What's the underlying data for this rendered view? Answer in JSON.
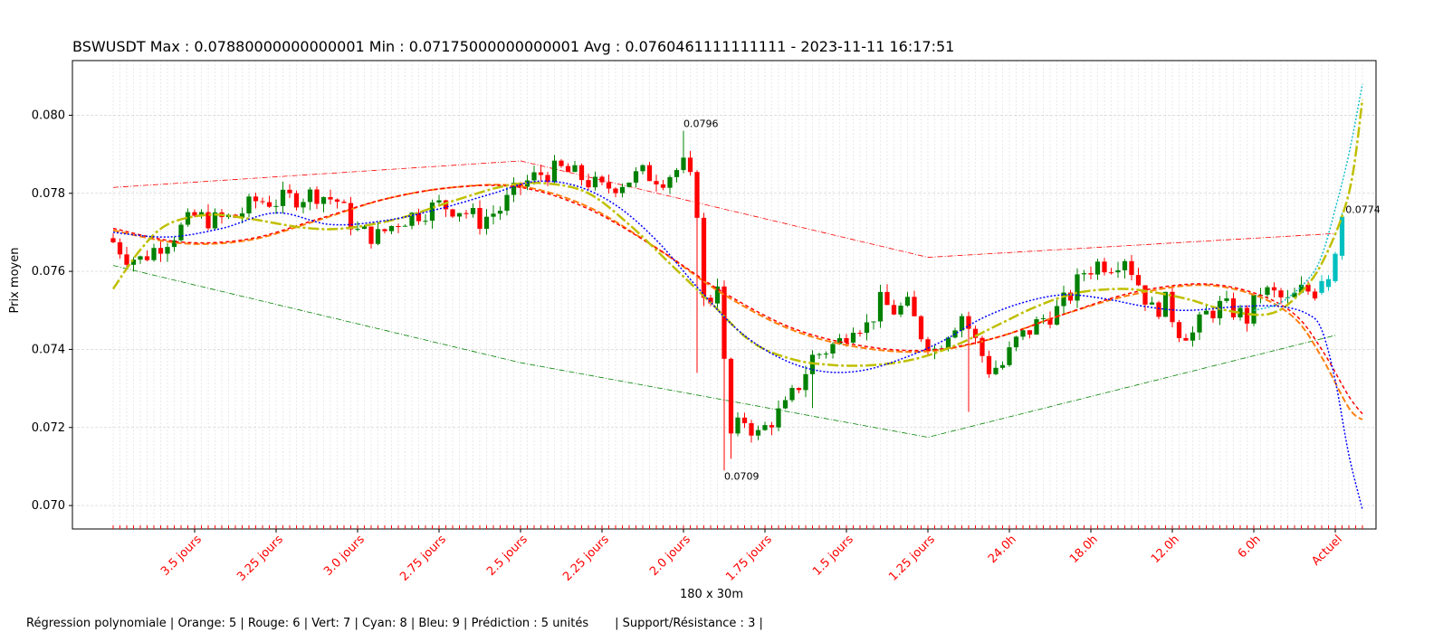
{
  "chart_data": {
    "type": "candlestick",
    "title": "BSWUSDT Max : 0.07880000000000001 Min : 0.07175000000000001 Avg : 0.0760461111111111 - 2023-11-11 16:17:51",
    "xlabel": "180 x 30m",
    "ylabel": "Prix moyen",
    "footer": "Régression polynomiale | Orange: 5 | Rouge: 6 | Vert: 7 | Cyan: 8 | Bleu: 9 | Prédiction : 5 unités       | Support/Résistance : 3 |",
    "ylim": [
      0.0694,
      0.0814
    ],
    "xlim": [
      -6,
      186
    ],
    "yticks": [
      "0.070",
      "0.072",
      "0.074",
      "0.076",
      "0.078",
      "0.080"
    ],
    "xtick_labels": [
      "3.5 jours",
      "3.25 jours",
      "3.0 jours",
      "2.75 jours",
      "2.5 jours",
      "2.25 jours",
      "2.0 jours",
      "1.75 jours",
      "1.5 jours",
      "1.25 jours",
      "24.0h",
      "18.0h",
      "12.0h",
      "6.0h",
      "Actuel"
    ],
    "xtick_positions": [
      12,
      24,
      36,
      48,
      60,
      72,
      84,
      96,
      108,
      120,
      132,
      144,
      156,
      168,
      180
    ],
    "grid": true,
    "annotations": [
      {
        "x": 84,
        "y": 0.0796,
        "text": "0.0796"
      },
      {
        "x": 90,
        "y": 0.0709,
        "text": "0.0709"
      },
      {
        "x": 181.5,
        "y": 0.0774,
        "text": "0.0774"
      }
    ],
    "colors": {
      "up": "#008000",
      "down": "#ff0000",
      "prediction": "#00bfbf",
      "curve_orange": "#ff7f0e",
      "curve_red": "#ff0000",
      "curve_olive": "#bfbf00",
      "curve_cyan": "#17becf",
      "curve_blue": "#0000ff",
      "resistance": "#ff0000",
      "support": "#008000"
    },
    "anchors": [
      [
        0,
        0.07675
      ],
      [
        2,
        0.0764
      ],
      [
        4,
        0.0763
      ],
      [
        7,
        0.0767
      ],
      [
        10,
        0.0771
      ],
      [
        12,
        0.0774
      ],
      [
        15,
        0.0773
      ],
      [
        18,
        0.0774
      ],
      [
        21,
        0.0778
      ],
      [
        24,
        0.0778
      ],
      [
        27,
        0.0779
      ],
      [
        30,
        0.078
      ],
      [
        33,
        0.0778
      ],
      [
        36,
        0.077
      ],
      [
        39,
        0.0769
      ],
      [
        42,
        0.0773
      ],
      [
        45,
        0.0775
      ],
      [
        48,
        0.0777
      ],
      [
        51,
        0.0776
      ],
      [
        54,
        0.0773
      ],
      [
        57,
        0.0776
      ],
      [
        60,
        0.0782
      ],
      [
        63,
        0.0785
      ],
      [
        66,
        0.0786
      ],
      [
        69,
        0.0784
      ],
      [
        72,
        0.0781
      ],
      [
        75,
        0.0783
      ],
      [
        78,
        0.0785
      ],
      [
        81,
        0.0784
      ],
      [
        84,
        0.0787
      ],
      [
        85,
        0.0783
      ],
      [
        86,
        0.0776
      ],
      [
        87,
        0.0752
      ],
      [
        88,
        0.0753
      ],
      [
        89,
        0.0758
      ],
      [
        90,
        0.0736
      ],
      [
        91,
        0.0718
      ],
      [
        93,
        0.0722
      ],
      [
        95,
        0.0718
      ],
      [
        97,
        0.0722
      ],
      [
        99,
        0.0725
      ],
      [
        101,
        0.0731
      ],
      [
        103,
        0.0738
      ],
      [
        105,
        0.074
      ],
      [
        107,
        0.0742
      ],
      [
        109,
        0.0747
      ],
      [
        111,
        0.0746
      ],
      [
        113,
        0.0752
      ],
      [
        115,
        0.075
      ],
      [
        117,
        0.0751
      ],
      [
        119,
        0.0744
      ],
      [
        121,
        0.074
      ],
      [
        123,
        0.0745
      ],
      [
        125,
        0.0749
      ],
      [
        127,
        0.0742
      ],
      [
        129,
        0.0735
      ],
      [
        131,
        0.0736
      ],
      [
        133,
        0.0742
      ],
      [
        135,
        0.0745
      ],
      [
        137,
        0.0748
      ],
      [
        139,
        0.075
      ],
      [
        141,
        0.0754
      ],
      [
        143,
        0.076
      ],
      [
        145,
        0.0762
      ],
      [
        147,
        0.0762
      ],
      [
        149,
        0.0764
      ],
      [
        151,
        0.0757
      ],
      [
        153,
        0.075
      ],
      [
        155,
        0.0752
      ],
      [
        157,
        0.0745
      ],
      [
        159,
        0.0744
      ],
      [
        161,
        0.0749
      ],
      [
        163,
        0.0751
      ],
      [
        165,
        0.075
      ],
      [
        167,
        0.0748
      ],
      [
        169,
        0.0755
      ],
      [
        171,
        0.0754
      ],
      [
        173,
        0.0752
      ],
      [
        175,
        0.0755
      ],
      [
        177,
        0.0755
      ]
    ],
    "prediction_candles": [
      {
        "x": 178,
        "open": 0.07545,
        "close": 0.07575,
        "high": 0.0759,
        "low": 0.0754
      },
      {
        "x": 179,
        "open": 0.0756,
        "close": 0.0758,
        "high": 0.0759,
        "low": 0.0755
      },
      {
        "x": 180,
        "open": 0.07575,
        "close": 0.07645,
        "high": 0.0765,
        "low": 0.0757
      },
      {
        "x": 181,
        "open": 0.0764,
        "close": 0.0774,
        "high": 0.0775,
        "low": 0.0763
      }
    ],
    "resistance_lines": [
      [
        [
          0,
          0.07815
        ],
        [
          60,
          0.07883
        ],
        [
          120,
          0.07636
        ],
        [
          180,
          0.07697
        ]
      ]
    ],
    "support_lines": [
      [
        [
          0,
          0.07615
        ],
        [
          60,
          0.07366
        ],
        [
          120,
          0.07175
        ],
        [
          180,
          0.07436
        ]
      ]
    ],
    "regression_curves": [
      {
        "color": "#ff7f0e",
        "dash": "7,3",
        "width": 2,
        "points": [
          [
            0,
            0.07705
          ],
          [
            10,
            0.07672
          ],
          [
            20,
            0.0768
          ],
          [
            30,
            0.0773
          ],
          [
            40,
            0.07785
          ],
          [
            50,
            0.07815
          ],
          [
            60,
            0.07818
          ],
          [
            70,
            0.07765
          ],
          [
            80,
            0.0766
          ],
          [
            90,
            0.0754
          ],
          [
            100,
            0.0745
          ],
          [
            110,
            0.07405
          ],
          [
            120,
            0.07395
          ],
          [
            130,
            0.0743
          ],
          [
            140,
            0.0749
          ],
          [
            150,
            0.0754
          ],
          [
            160,
            0.07565
          ],
          [
            168,
            0.0754
          ],
          [
            174,
            0.0748
          ],
          [
            178,
            0.0738
          ],
          [
            182,
            0.0725
          ],
          [
            184,
            0.0722
          ]
        ]
      },
      {
        "color": "#ff0000",
        "dash": "4,3",
        "width": 1.5,
        "points": [
          [
            0,
            0.0771
          ],
          [
            10,
            0.07675
          ],
          [
            20,
            0.07683
          ],
          [
            30,
            0.07733
          ],
          [
            40,
            0.07785
          ],
          [
            50,
            0.07815
          ],
          [
            60,
            0.07815
          ],
          [
            70,
            0.0776
          ],
          [
            80,
            0.0766
          ],
          [
            90,
            0.07545
          ],
          [
            100,
            0.07455
          ],
          [
            110,
            0.0741
          ],
          [
            120,
            0.07398
          ],
          [
            130,
            0.0743
          ],
          [
            140,
            0.0749
          ],
          [
            150,
            0.07545
          ],
          [
            160,
            0.07568
          ],
          [
            168,
            0.07545
          ],
          [
            174,
            0.0749
          ],
          [
            178,
            0.074
          ],
          [
            182,
            0.0728
          ],
          [
            184,
            0.07235
          ]
        ]
      },
      {
        "color": "#bfbf00",
        "dash": "12,3,3,3",
        "width": 2.5,
        "points": [
          [
            0,
            0.07555
          ],
          [
            4,
            0.07655
          ],
          [
            8,
            0.0772
          ],
          [
            14,
            0.07745
          ],
          [
            20,
            0.07735
          ],
          [
            28,
            0.07712
          ],
          [
            34,
            0.0771
          ],
          [
            42,
            0.07735
          ],
          [
            50,
            0.0778
          ],
          [
            58,
            0.0782
          ],
          [
            64,
            0.07825
          ],
          [
            70,
            0.078
          ],
          [
            76,
            0.0772
          ],
          [
            82,
            0.0762
          ],
          [
            88,
            0.0752
          ],
          [
            94,
            0.0742
          ],
          [
            100,
            0.07375
          ],
          [
            106,
            0.0736
          ],
          [
            112,
            0.0736
          ],
          [
            118,
            0.07375
          ],
          [
            124,
            0.0741
          ],
          [
            130,
            0.0746
          ],
          [
            136,
            0.0751
          ],
          [
            142,
            0.07545
          ],
          [
            148,
            0.07555
          ],
          [
            152,
            0.0755
          ],
          [
            158,
            0.0753
          ],
          [
            164,
            0.075
          ],
          [
            170,
            0.0749
          ],
          [
            174,
            0.0753
          ],
          [
            178,
            0.0762
          ],
          [
            182,
            0.078
          ],
          [
            184,
            0.0804
          ]
        ]
      },
      {
        "color": "#17becf",
        "dash": "2,2",
        "width": 1.5,
        "points": [
          [
            168,
            0.075
          ],
          [
            172,
            0.0752
          ],
          [
            176,
            0.0758
          ],
          [
            178,
            0.0764
          ],
          [
            180,
            0.0776
          ],
          [
            182,
            0.079
          ],
          [
            184,
            0.0808
          ]
        ]
      },
      {
        "color": "#0000ff",
        "dash": "2,2",
        "width": 1.5,
        "points": [
          [
            0,
            0.077
          ],
          [
            8,
            0.07688
          ],
          [
            16,
            0.0771
          ],
          [
            24,
            0.0775
          ],
          [
            32,
            0.0772
          ],
          [
            40,
            0.0773
          ],
          [
            48,
            0.0776
          ],
          [
            56,
            0.078
          ],
          [
            62,
            0.0783
          ],
          [
            68,
            0.0782
          ],
          [
            74,
            0.0777
          ],
          [
            80,
            0.0768
          ],
          [
            86,
            0.0756
          ],
          [
            92,
            0.0745
          ],
          [
            98,
            0.0738
          ],
          [
            104,
            0.07345
          ],
          [
            110,
            0.07345
          ],
          [
            116,
            0.07375
          ],
          [
            122,
            0.0742
          ],
          [
            128,
            0.0748
          ],
          [
            134,
            0.0752
          ],
          [
            140,
            0.0754
          ],
          [
            146,
            0.0753
          ],
          [
            152,
            0.0751
          ],
          [
            158,
            0.075
          ],
          [
            166,
            0.0751
          ],
          [
            172,
            0.0751
          ],
          [
            176,
            0.0749
          ],
          [
            178,
            0.0745
          ],
          [
            180,
            0.0732
          ],
          [
            182,
            0.0713
          ],
          [
            184,
            0.0699
          ]
        ]
      }
    ]
  }
}
